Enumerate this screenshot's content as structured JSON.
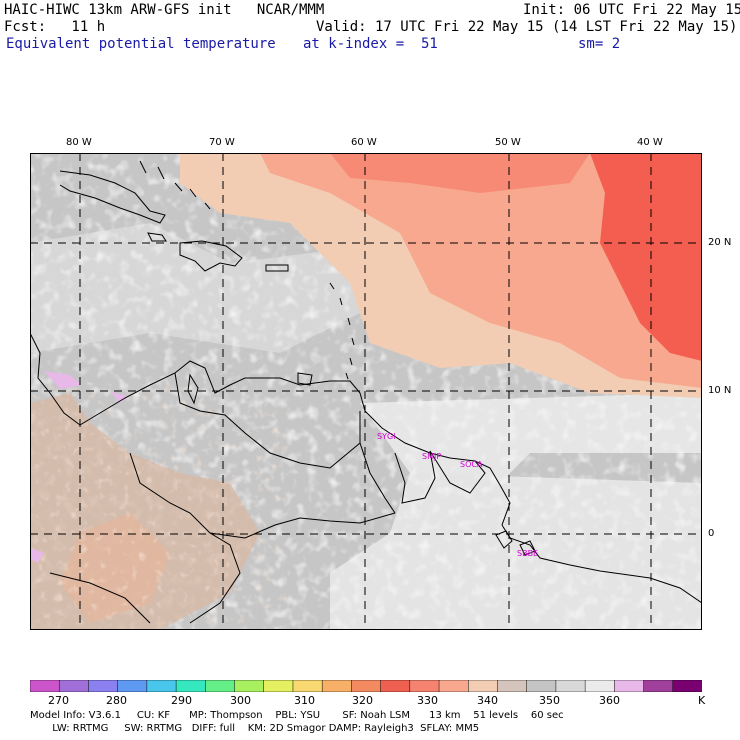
{
  "header": {
    "title_left": "HAIC-HIWC 13km ARW-GFS init   NCAR/MMM",
    "init": "Init: 06 UTC Fri 22 May 15",
    "fcst": "Fcst:   11 h",
    "valid": "Valid: 17 UTC Fri 22 May 15 (14 LST Fri 22 May 15)",
    "field": "Equivalent potential temperature",
    "level": "at k-index =  51",
    "smooth": "sm= 2"
  },
  "map": {
    "lon_labels": [
      "80 W",
      "70 W",
      "60 W",
      "50 W",
      "40 W"
    ],
    "lat_labels": [
      "20 N",
      "10 N",
      "0"
    ],
    "stations": [
      "SYGI",
      "SMJP",
      "SOCA",
      "SBBE"
    ]
  },
  "colorbar": {
    "colors": [
      "#cc55cc",
      "#a070d8",
      "#8a80f0",
      "#5f9af2",
      "#48c6ec",
      "#36e8c0",
      "#64ee88",
      "#a8f060",
      "#e4f060",
      "#f8d870",
      "#f8b068",
      "#f48a60",
      "#f06050",
      "#f68270",
      "#f8a88e",
      "#f2cdb4",
      "#d4c4bc",
      "#c4c4c4",
      "#d8d8d8",
      "#ebebeb",
      "#e8b8e8",
      "#a0409c",
      "#7a0072"
    ],
    "labels": [
      "270",
      "280",
      "290",
      "300",
      "310",
      "320",
      "330",
      "340",
      "350",
      "360",
      "K"
    ]
  },
  "model_info": {
    "line1": "Model Info: V3.6.1     CU: KF      MP: Thompson    PBL: YSU       SF: Noah LSM      13 km    51 levels    60 sec",
    "line2": "       LW: RRTMG     SW: RRTMG   DIFF: full    KM: 2D Smagor DAMP: Rayleigh3  SFLAY: MM5"
  }
}
